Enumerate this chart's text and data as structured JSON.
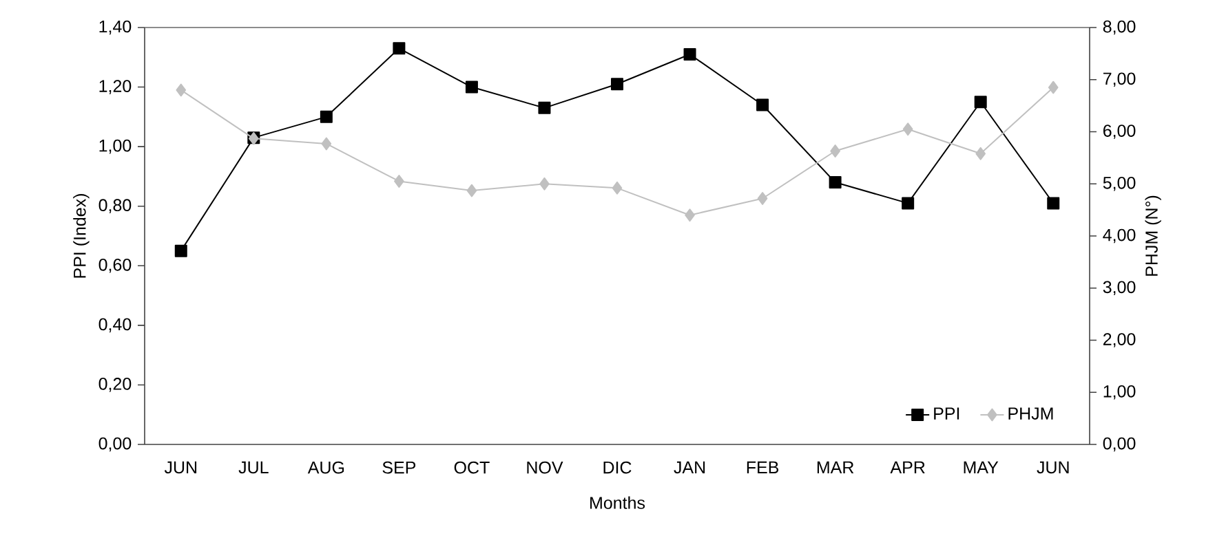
{
  "chart_data": {
    "type": "line",
    "xlabel": "Months",
    "ylabel": "PPI (Index)",
    "y2label": "PHJM (N°)",
    "categories": [
      "JUN",
      "JUL",
      "AUG",
      "SEP",
      "OCT",
      "NOV",
      "DIC",
      "JAN",
      "FEB",
      "MAR",
      "APR",
      "MAY",
      "JUN"
    ],
    "series": [
      {
        "name": "PPI",
        "color": "#000000",
        "marker": "square",
        "values": [
          0.65,
          1.03,
          1.1,
          1.33,
          1.2,
          1.13,
          1.21,
          1.31,
          1.14,
          0.88,
          0.81,
          1.15,
          0.81
        ]
      },
      {
        "name": "PHJM",
        "color": "#c0c0c0",
        "marker": "diamond",
        "axis": "y2",
        "values": [
          6.8,
          5.87,
          5.77,
          5.05,
          4.87,
          5.0,
          4.92,
          4.4,
          4.72,
          5.63,
          6.05,
          5.58,
          6.85
        ]
      }
    ],
    "ylim": [
      0,
      1.4
    ],
    "yticks": [
      {
        "value": 0,
        "label": "0,00"
      },
      {
        "value": 0.2,
        "label": "0,20"
      },
      {
        "value": 0.4,
        "label": "0,40"
      },
      {
        "value": 0.6,
        "label": "0,60"
      },
      {
        "value": 0.8,
        "label": "0,80"
      },
      {
        "value": 1.0,
        "label": "1,00"
      },
      {
        "value": 1.2,
        "label": "1,20"
      },
      {
        "value": 1.4,
        "label": "1,40"
      }
    ],
    "y2lim": [
      0,
      8
    ],
    "y2ticks": [
      {
        "value": 0,
        "label": "0,00"
      },
      {
        "value": 1,
        "label": "1,00"
      },
      {
        "value": 2,
        "label": "2,00"
      },
      {
        "value": 3,
        "label": "3,00"
      },
      {
        "value": 4,
        "label": "4,00"
      },
      {
        "value": 5,
        "label": "5,00"
      },
      {
        "value": 6,
        "label": "6,00"
      },
      {
        "value": 7,
        "label": "7,00"
      },
      {
        "value": 8,
        "label": "8,00"
      }
    ],
    "grid": false,
    "legend": "bottom right",
    "line_style": "solid"
  }
}
